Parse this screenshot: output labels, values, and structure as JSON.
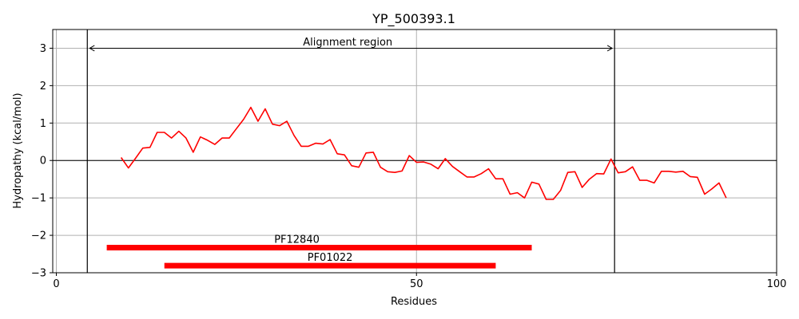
{
  "chart_data": {
    "type": "line",
    "title": "YP_500393.1",
    "xlabel": "Residues",
    "ylabel": "Hydropathy (kcal/mol)",
    "xlim": [
      -0.5,
      100
    ],
    "ylim": [
      -3,
      3.5
    ],
    "x_ticks": [
      0,
      50,
      100
    ],
    "y_ticks": [
      -3,
      -2,
      -1,
      0,
      1,
      2,
      3
    ],
    "x_tick_labels": [
      "0",
      "50",
      "100"
    ],
    "y_tick_labels": [
      "−3",
      "−2",
      "−1",
      "0",
      "1",
      "2",
      "3"
    ],
    "grid": true,
    "series": [
      {
        "color": "#ff0000",
        "x": [
          9,
          10,
          11,
          12,
          13,
          14,
          15,
          16,
          17,
          18,
          19,
          20,
          21,
          22,
          23,
          24,
          25,
          26,
          27,
          28,
          29,
          30,
          31,
          32,
          33,
          34,
          35,
          36,
          37,
          38,
          39,
          40,
          41,
          42,
          43,
          44,
          45,
          46,
          47,
          48,
          49,
          50,
          51,
          52,
          53,
          54,
          55,
          56,
          57,
          58,
          59,
          60,
          61,
          62,
          63,
          64,
          65,
          66,
          67,
          68,
          69,
          70,
          71,
          72,
          73,
          74,
          75,
          76,
          77,
          78,
          79,
          80,
          81,
          82,
          83,
          84,
          85,
          86,
          87,
          88,
          89,
          90,
          91,
          92,
          93
        ],
        "y": [
          0.08,
          -0.2,
          0.06,
          0.33,
          0.35,
          0.75,
          0.75,
          0.6,
          0.78,
          0.6,
          0.22,
          0.63,
          0.54,
          0.43,
          0.6,
          0.6,
          0.85,
          1.1,
          1.42,
          1.05,
          1.38,
          0.97,
          0.93,
          1.05,
          0.67,
          0.38,
          0.38,
          0.46,
          0.44,
          0.56,
          0.18,
          0.15,
          -0.14,
          -0.18,
          0.2,
          0.22,
          -0.18,
          -0.3,
          -0.32,
          -0.28,
          0.13,
          -0.05,
          -0.04,
          -0.1,
          -0.22,
          0.05,
          -0.16,
          -0.3,
          -0.44,
          -0.44,
          -0.35,
          -0.22,
          -0.49,
          -0.49,
          -0.9,
          -0.86,
          -1.0,
          -0.58,
          -0.63,
          -1.04,
          -1.04,
          -0.8,
          -0.32,
          -0.3,
          -0.72,
          -0.5,
          -0.35,
          -0.36,
          0.04,
          -0.33,
          -0.3,
          -0.17,
          -0.53,
          -0.53,
          -0.6,
          -0.29,
          -0.29,
          -0.31,
          -0.29,
          -0.43,
          -0.45,
          -0.9,
          -0.76,
          -0.6,
          -1.0
        ]
      }
    ],
    "vlines": [
      4.3,
      77.5
    ],
    "annotations": [
      {
        "type": "double-arrow",
        "x_start": 4.3,
        "x_end": 77.5,
        "y": 3.0,
        "label": "Alignment region"
      },
      {
        "type": "bar",
        "x_start": 7,
        "x_end": 66,
        "y": -2.33,
        "label": "PF12840",
        "color": "#ff0000"
      },
      {
        "type": "bar",
        "x_start": 15,
        "x_end": 61,
        "y": -2.81,
        "label": "PF01022",
        "color": "#ff0000"
      }
    ]
  }
}
